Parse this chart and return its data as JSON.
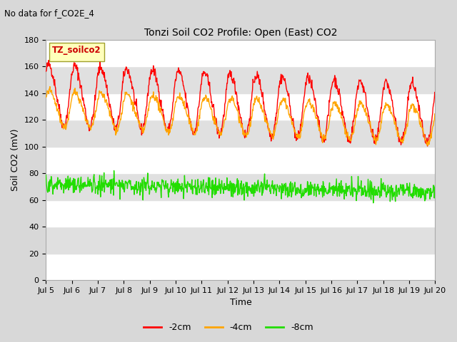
{
  "title": "Tonzi Soil CO2 Profile: Open (East) CO2",
  "subtitle": "No data for f_CO2E_4",
  "xlabel": "Time",
  "ylabel": "Soil CO2 (mV)",
  "ylim": [
    0,
    180
  ],
  "yticks": [
    0,
    20,
    40,
    60,
    80,
    100,
    120,
    140,
    160,
    180
  ],
  "xtick_labels": [
    "Jul 5",
    "Jul 6",
    "Jul 7",
    "Jul 8",
    "Jul 9",
    "Jul 10",
    "Jul 11",
    "Jul 12",
    "Jul 13",
    "Jul 14",
    "Jul 15",
    "Jul 16",
    "Jul 17",
    "Jul 18",
    "Jul 19",
    "Jul 20"
  ],
  "legend_label": "TZ_soilco2",
  "color_2cm": "#ff0000",
  "color_4cm": "#ffa500",
  "color_8cm": "#22dd00",
  "line_labels": [
    "-2cm",
    "-4cm",
    "-8cm"
  ],
  "bg_color": "#d8d8d8",
  "band_white": "#ffffff",
  "band_gray": "#e0e0e0",
  "seed": 42,
  "n_points": 900,
  "days": 15,
  "amplitude_2cm": 22,
  "baseline_2cm": 138,
  "trend_2cm": -1.0,
  "amplitude_4cm": 13,
  "baseline_4cm": 128,
  "trend_4cm": -0.8,
  "baseline_8cm": 72,
  "trend_8cm": -0.4,
  "noise_8cm": 3.5,
  "phase_2cm": 0.6,
  "phase_4cm": 0.45
}
